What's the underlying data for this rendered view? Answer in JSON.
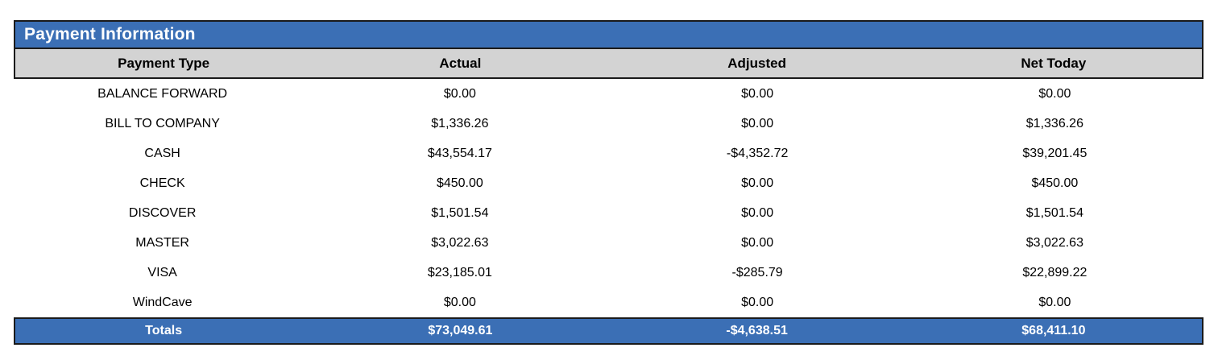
{
  "table": {
    "title": "Payment Information",
    "columns": [
      "Payment Type",
      "Actual",
      "Adjusted",
      "Net Today"
    ],
    "rows": [
      [
        "BALANCE FORWARD",
        "$0.00",
        "$0.00",
        "$0.00"
      ],
      [
        "BILL TO COMPANY",
        "$1,336.26",
        "$0.00",
        "$1,336.26"
      ],
      [
        "CASH",
        "$43,554.17",
        "-$4,352.72",
        "$39,201.45"
      ],
      [
        "CHECK",
        "$450.00",
        "$0.00",
        "$450.00"
      ],
      [
        "DISCOVER",
        "$1,501.54",
        "$0.00",
        "$1,501.54"
      ],
      [
        "MASTER",
        "$3,022.63",
        "$0.00",
        "$3,022.63"
      ],
      [
        "VISA",
        "$23,185.01",
        "-$285.79",
        "$22,899.22"
      ],
      [
        "WindCave",
        "$0.00",
        "$0.00",
        "$0.00"
      ]
    ],
    "totals": [
      "Totals",
      "$73,049.61",
      "-$4,638.51",
      "$68,411.10"
    ]
  },
  "colors": {
    "accent_blue": "#3B6FB5",
    "header_gray": "#D3D3D3",
    "border_dark": "#1a1a1a",
    "title_text": "#ffffff"
  }
}
